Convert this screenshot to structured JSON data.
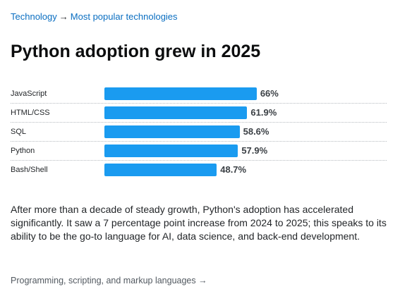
{
  "breadcrumb": {
    "items": [
      "Technology",
      "Most popular technologies"
    ],
    "separator": "→"
  },
  "title": "Python adoption grew in 2025",
  "chart_data": {
    "type": "bar",
    "orientation": "horizontal",
    "categories": [
      "JavaScript",
      "HTML/CSS",
      "SQL",
      "Python",
      "Bash/Shell"
    ],
    "values": [
      66,
      61.9,
      58.6,
      57.9,
      48.7
    ],
    "value_labels": [
      "66%",
      "61.9%",
      "58.6%",
      "57.9%",
      "48.7%"
    ],
    "unit": "%",
    "xlim": [
      0,
      100
    ],
    "bar_color": "#1a9bf0",
    "grid": false,
    "legend": "none"
  },
  "description": "After more than a decade of steady growth, Python's adoption has accelerated significantly. It saw a 7 percentage point increase from 2024 to 2025; this speaks to its ability to be the go-to language for AI, data science, and back-end development.",
  "footer": {
    "link_label": "Programming, scripting, and markup languages →"
  },
  "colors": {
    "link": "#0a6ec1",
    "text": "#232629",
    "bar": "#1a9bf0"
  }
}
